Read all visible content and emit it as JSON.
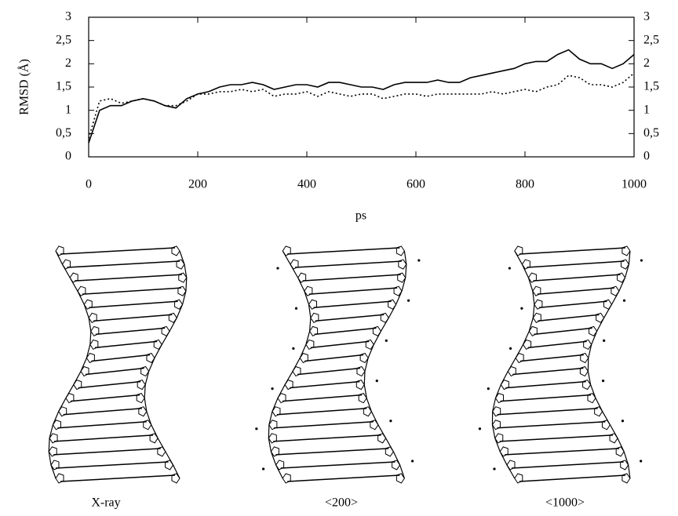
{
  "chart_data": {
    "type": "line",
    "ylabel": "RMSD (Å)",
    "xlabel": "ps",
    "x": [
      0,
      20,
      40,
      60,
      80,
      100,
      120,
      140,
      160,
      180,
      200,
      220,
      240,
      260,
      280,
      300,
      320,
      340,
      360,
      380,
      400,
      420,
      440,
      460,
      480,
      500,
      520,
      540,
      560,
      580,
      600,
      620,
      640,
      660,
      680,
      700,
      720,
      740,
      760,
      780,
      800,
      820,
      840,
      860,
      880,
      900,
      920,
      940,
      960,
      980,
      1000
    ],
    "series": [
      {
        "color": "#000000",
        "style": "solid",
        "values": [
          0.3,
          1.0,
          1.1,
          1.1,
          1.2,
          1.25,
          1.2,
          1.1,
          1.05,
          1.25,
          1.35,
          1.4,
          1.5,
          1.55,
          1.55,
          1.6,
          1.55,
          1.45,
          1.5,
          1.55,
          1.55,
          1.5,
          1.6,
          1.6,
          1.55,
          1.5,
          1.5,
          1.45,
          1.55,
          1.6,
          1.6,
          1.6,
          1.65,
          1.6,
          1.6,
          1.7,
          1.75,
          1.8,
          1.85,
          1.9,
          2.0,
          2.05,
          2.05,
          2.2,
          2.3,
          2.1,
          2.0,
          2.0,
          1.9,
          2.0,
          2.2
        ]
      },
      {
        "color": "#000000",
        "style": "dotted",
        "values": [
          0.4,
          1.2,
          1.25,
          1.15,
          1.2,
          1.25,
          1.2,
          1.1,
          1.1,
          1.2,
          1.35,
          1.35,
          1.4,
          1.4,
          1.45,
          1.4,
          1.45,
          1.3,
          1.35,
          1.35,
          1.4,
          1.3,
          1.4,
          1.35,
          1.3,
          1.35,
          1.35,
          1.25,
          1.3,
          1.35,
          1.35,
          1.3,
          1.35,
          1.35,
          1.35,
          1.35,
          1.35,
          1.4,
          1.35,
          1.4,
          1.45,
          1.4,
          1.5,
          1.55,
          1.75,
          1.7,
          1.55,
          1.55,
          1.5,
          1.6,
          1.8
        ]
      }
    ],
    "xlim": [
      0,
      1000
    ],
    "xticks": [
      0,
      200,
      400,
      600,
      800,
      1000
    ],
    "ylim": [
      0,
      3
    ],
    "yticks": [
      0,
      {
        "value": 0.5,
        "label": "0,5"
      },
      1,
      {
        "value": 1.5,
        "label": "1,5"
      },
      2,
      {
        "value": 2.5,
        "label": "2,5"
      },
      3
    ],
    "y2lim": [
      0,
      3
    ],
    "y2ticks": [
      0,
      {
        "value": 0.5,
        "label": "0,5"
      },
      1,
      {
        "value": 1.5,
        "label": "1,5"
      },
      2,
      {
        "value": 2.5,
        "label": "2,5"
      },
      3
    ]
  },
  "structures": [
    {
      "label": "X-ray"
    },
    {
      "label": "<200>"
    },
    {
      "label": "<1000>"
    }
  ]
}
